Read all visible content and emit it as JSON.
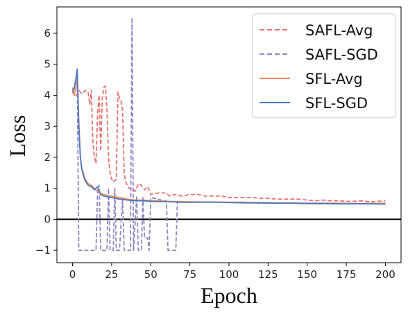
{
  "chart_data": {
    "type": "line",
    "title": "",
    "xlabel": "Epoch",
    "ylabel": "Loss",
    "xlim": [
      -10,
      210
    ],
    "ylim": [
      -1.4,
      6.85
    ],
    "xticks": [
      0,
      25,
      50,
      75,
      100,
      125,
      150,
      175,
      200
    ],
    "yticks": [
      -1,
      0,
      1,
      2,
      3,
      4,
      5,
      6
    ],
    "xtick_labels": [
      "0",
      "25",
      "50",
      "75",
      "100",
      "125",
      "150",
      "175",
      "200"
    ],
    "ytick_labels": [
      "−1",
      "0",
      "1",
      "2",
      "3",
      "4",
      "5",
      "6"
    ],
    "grid": false,
    "reference_line": {
      "y": 0,
      "color": "#000000"
    },
    "legend": {
      "position": "top-right"
    },
    "series": [
      {
        "name": "SAFL-Avg",
        "color": "#e8706f",
        "dash": "dashed",
        "points": [
          [
            0,
            4.1
          ],
          [
            2,
            3.95
          ],
          [
            4,
            4.15
          ],
          [
            6,
            4.05
          ],
          [
            8,
            4.15
          ],
          [
            10,
            4.1
          ],
          [
            11,
            3.7
          ],
          [
            12,
            4.15
          ],
          [
            13,
            2.5
          ],
          [
            14,
            2.0
          ],
          [
            15,
            1.8
          ],
          [
            16,
            3.4
          ],
          [
            17,
            4.0
          ],
          [
            18,
            2.2
          ],
          [
            19,
            3.9
          ],
          [
            20,
            4.25
          ],
          [
            21,
            4.3
          ],
          [
            22,
            3.5
          ],
          [
            23,
            2.0
          ],
          [
            24,
            1.5
          ],
          [
            25,
            1.3
          ],
          [
            26,
            1.2
          ],
          [
            27,
            1.25
          ],
          [
            28,
            1.3
          ],
          [
            29,
            4.1
          ],
          [
            30,
            3.9
          ],
          [
            31,
            3.8
          ],
          [
            32,
            3.5
          ],
          [
            33,
            1.5
          ],
          [
            34,
            1.2
          ],
          [
            35,
            1.1
          ],
          [
            36,
            1.0
          ],
          [
            38,
            1.0
          ],
          [
            40,
            0.9
          ],
          [
            42,
            1.15
          ],
          [
            44,
            1.1
          ],
          [
            46,
            0.95
          ],
          [
            48,
            1.05
          ],
          [
            50,
            0.8
          ],
          [
            55,
            0.85
          ],
          [
            60,
            0.85
          ],
          [
            62,
            0.75
          ],
          [
            65,
            0.8
          ],
          [
            70,
            0.75
          ],
          [
            75,
            0.8
          ],
          [
            80,
            0.8
          ],
          [
            85,
            0.75
          ],
          [
            90,
            0.75
          ],
          [
            95,
            0.75
          ],
          [
            100,
            0.7
          ],
          [
            105,
            0.7
          ],
          [
            110,
            0.7
          ],
          [
            115,
            0.7
          ],
          [
            120,
            0.68
          ],
          [
            125,
            0.68
          ],
          [
            130,
            0.65
          ],
          [
            135,
            0.65
          ],
          [
            140,
            0.65
          ],
          [
            145,
            0.65
          ],
          [
            150,
            0.62
          ],
          [
            155,
            0.6
          ],
          [
            160,
            0.62
          ],
          [
            165,
            0.6
          ],
          [
            170,
            0.6
          ],
          [
            175,
            0.58
          ],
          [
            180,
            0.58
          ],
          [
            185,
            0.6
          ],
          [
            190,
            0.56
          ],
          [
            195,
            0.58
          ],
          [
            200,
            0.6
          ]
        ]
      },
      {
        "name": "SAFL-SGD",
        "color": "#8f86c4",
        "dash": "dashed",
        "points": [
          [
            0,
            4.25
          ],
          [
            1,
            4.0
          ],
          [
            2,
            4.2
          ],
          [
            3,
            4.7
          ],
          [
            4,
            -1.0
          ],
          [
            8,
            -1.0
          ],
          [
            12,
            -1.0
          ],
          [
            15,
            -1.0
          ],
          [
            16,
            0.9
          ],
          [
            17,
            1.1
          ],
          [
            18,
            -1.0
          ],
          [
            21,
            -1.0
          ],
          [
            22,
            -1.0
          ],
          [
            23,
            1.0
          ],
          [
            24,
            -1.0
          ],
          [
            26,
            -1.0
          ],
          [
            27,
            1.0
          ],
          [
            28,
            -1.0
          ],
          [
            30,
            -1.0
          ],
          [
            32,
            0.7
          ],
          [
            33,
            -1.0
          ],
          [
            37,
            -1.0
          ],
          [
            38,
            6.5
          ],
          [
            39,
            -1.0
          ],
          [
            41,
            0.75
          ],
          [
            42,
            -1.0
          ],
          [
            44,
            -1.0
          ],
          [
            45,
            0.7
          ],
          [
            46,
            -0.6
          ],
          [
            48,
            -0.6
          ],
          [
            49,
            -1.0
          ],
          [
            50,
            0.7
          ],
          [
            55,
            0.65
          ],
          [
            58,
            0.6
          ],
          [
            60,
            0.6
          ],
          [
            61,
            -1.0
          ],
          [
            66,
            -1.0
          ],
          [
            67,
            0.55
          ],
          [
            70,
            0.55
          ],
          [
            80,
            0.55
          ],
          [
            90,
            0.55
          ],
          [
            100,
            0.55
          ],
          [
            110,
            0.55
          ],
          [
            120,
            0.52
          ],
          [
            130,
            0.52
          ],
          [
            140,
            0.52
          ],
          [
            150,
            0.5
          ],
          [
            160,
            0.5
          ],
          [
            170,
            0.5
          ],
          [
            180,
            0.5
          ],
          [
            190,
            0.5
          ],
          [
            200,
            0.5
          ]
        ]
      },
      {
        "name": "SFL-Avg",
        "color": "#f08a5a",
        "dash": "solid",
        "points": [
          [
            0,
            4.2
          ],
          [
            1,
            4.0
          ],
          [
            2,
            4.2
          ],
          [
            3,
            4.6
          ],
          [
            4,
            3.2
          ],
          [
            5,
            2.0
          ],
          [
            6,
            1.6
          ],
          [
            7,
            1.5
          ],
          [
            8,
            1.3
          ],
          [
            10,
            1.15
          ],
          [
            12,
            1.1
          ],
          [
            15,
            0.95
          ],
          [
            17,
            0.85
          ],
          [
            20,
            0.8
          ],
          [
            25,
            0.75
          ],
          [
            30,
            0.7
          ],
          [
            35,
            0.65
          ],
          [
            40,
            0.62
          ],
          [
            45,
            0.62
          ],
          [
            50,
            0.6
          ],
          [
            55,
            0.6
          ],
          [
            60,
            0.58
          ],
          [
            70,
            0.57
          ],
          [
            80,
            0.56
          ],
          [
            90,
            0.56
          ],
          [
            100,
            0.55
          ],
          [
            110,
            0.55
          ],
          [
            120,
            0.54
          ],
          [
            130,
            0.53
          ],
          [
            140,
            0.53
          ],
          [
            150,
            0.52
          ],
          [
            160,
            0.52
          ],
          [
            170,
            0.52
          ],
          [
            180,
            0.51
          ],
          [
            190,
            0.51
          ],
          [
            200,
            0.52
          ]
        ]
      },
      {
        "name": "SFL-SGD",
        "color": "#4a78c2",
        "dash": "solid",
        "points": [
          [
            0,
            4.1
          ],
          [
            1,
            4.2
          ],
          [
            2,
            4.5
          ],
          [
            3,
            4.85
          ],
          [
            4,
            3.0
          ],
          [
            5,
            2.0
          ],
          [
            6,
            1.6
          ],
          [
            7,
            1.4
          ],
          [
            8,
            1.25
          ],
          [
            10,
            1.1
          ],
          [
            12,
            1.05
          ],
          [
            14,
            0.95
          ],
          [
            16,
            1.05
          ],
          [
            18,
            0.8
          ],
          [
            20,
            0.75
          ],
          [
            25,
            0.7
          ],
          [
            30,
            0.65
          ],
          [
            35,
            0.62
          ],
          [
            40,
            0.6
          ],
          [
            45,
            0.6
          ],
          [
            50,
            0.58
          ],
          [
            55,
            0.57
          ],
          [
            60,
            0.57
          ],
          [
            70,
            0.55
          ],
          [
            80,
            0.55
          ],
          [
            90,
            0.55
          ],
          [
            100,
            0.54
          ],
          [
            110,
            0.53
          ],
          [
            120,
            0.53
          ],
          [
            130,
            0.52
          ],
          [
            140,
            0.52
          ],
          [
            150,
            0.51
          ],
          [
            160,
            0.51
          ],
          [
            170,
            0.5
          ],
          [
            180,
            0.5
          ],
          [
            190,
            0.5
          ],
          [
            200,
            0.49
          ]
        ]
      }
    ]
  }
}
